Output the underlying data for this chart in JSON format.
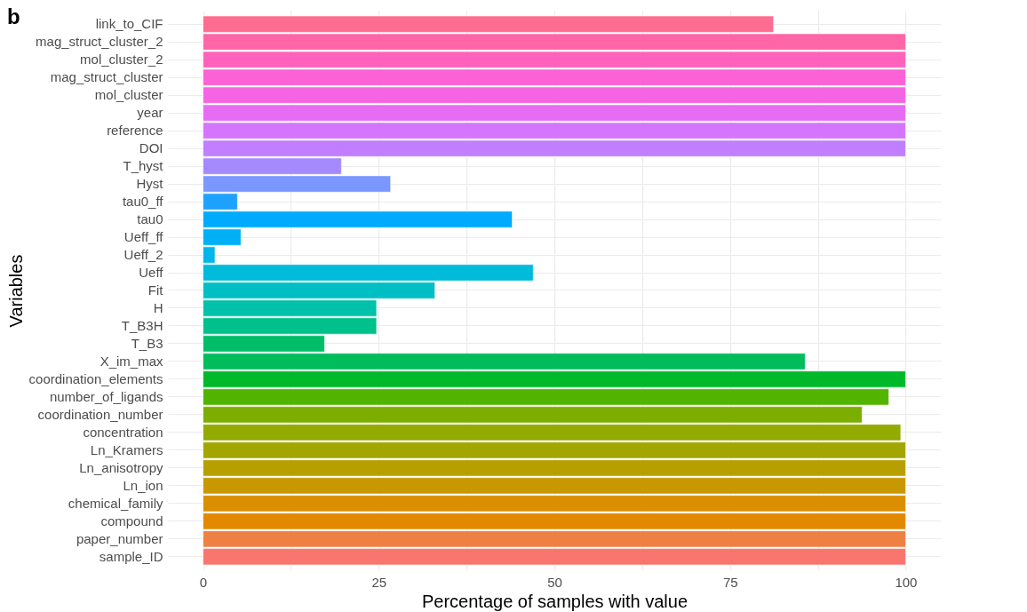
{
  "chart_data": {
    "type": "bar",
    "orientation": "horizontal",
    "xlabel": "Percentage of samples with value",
    "ylabel": "Variables",
    "annotations": [
      "b"
    ],
    "categories": [
      "link_to_CIF",
      "mag_struct_cluster_2",
      "mol_cluster_2",
      "mag_struct_cluster",
      "mol_cluster",
      "year",
      "reference",
      "DOI",
      "T_hyst",
      "Hyst",
      "tau0_ff",
      "tau0",
      "Ueff_ff",
      "Ueff_2",
      "Ueff",
      "Fit",
      "H",
      "T_B3H",
      "T_B3",
      "X_im_max",
      "coordination_elements",
      "number_of_ligands",
      "coordination_number",
      "concentration",
      "Ln_Kramers",
      "Ln_anisotropy",
      "Ln_ion",
      "chemical_family",
      "compound",
      "paper_number",
      "sample_ID"
    ],
    "values": [
      81.2,
      100,
      100,
      100,
      100,
      100,
      100,
      100,
      19.7,
      26.7,
      4.9,
      44.0,
      5.4,
      1.7,
      47.0,
      33.0,
      24.7,
      24.7,
      17.3,
      85.7,
      100,
      97.6,
      93.8,
      99.3,
      100,
      100,
      100,
      100,
      100,
      100,
      100
    ],
    "colors": [
      "#FF6C91",
      "#FF66A8",
      "#FF62BC",
      "#FC61D5",
      "#F564E3",
      "#E76BF3",
      "#D575FE",
      "#C17FFF",
      "#A58AFF",
      "#7997FF",
      "#1FA2FF",
      "#00ABFD",
      "#00B0F6",
      "#00B6EB",
      "#00BBDA",
      "#00BFC4",
      "#00C1A9",
      "#00C08B",
      "#00BE67",
      "#00BD5C",
      "#00B92A",
      "#53B400",
      "#7CAE00",
      "#93AA00",
      "#A3A500",
      "#B79F00",
      "#C99800",
      "#DB8E00",
      "#E38900",
      "#EE8044",
      "#F8766D"
    ],
    "xlim": [
      -5,
      105
    ],
    "xticks": [
      0,
      {
        "value": 12.5,
        "label": null
      },
      25,
      {
        "value": 37.5,
        "label": null
      },
      50,
      {
        "value": 62.5,
        "label": null
      },
      75,
      {
        "value": 87.5,
        "label": null
      },
      100
    ],
    "grid": true
  }
}
